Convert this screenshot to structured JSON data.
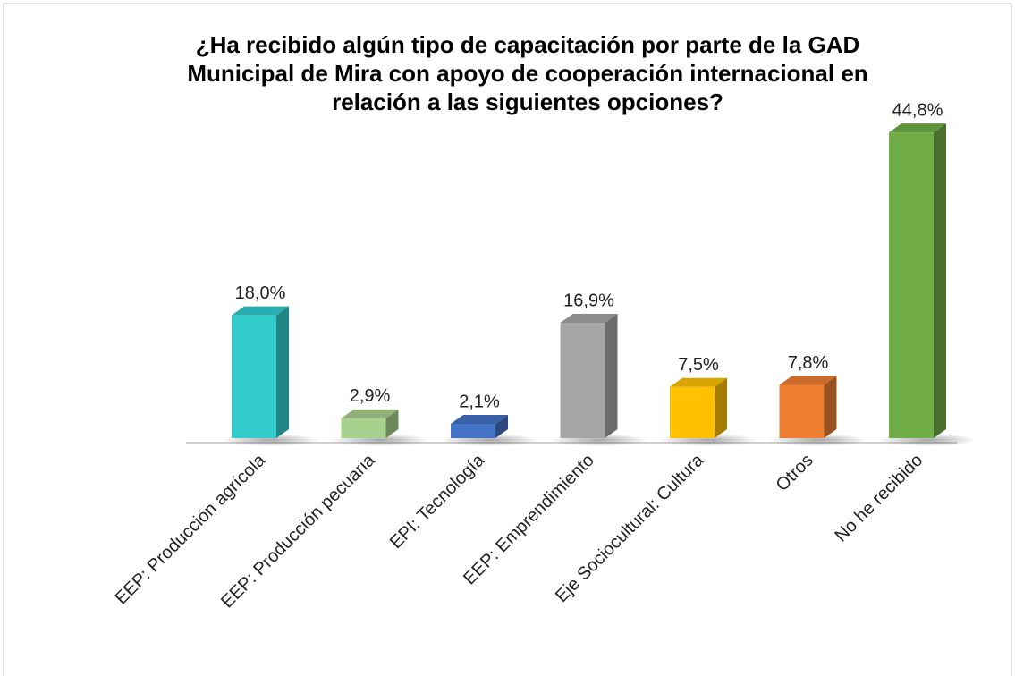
{
  "chart_data": {
    "type": "bar3d",
    "title": [
      "¿Ha recibido algún tipo de capacitación por parte de la GAD",
      "Municipal de Mira con apoyo de cooperación internacional en",
      "relación a las siguientes opciones?"
    ],
    "categories": [
      "EEP: Producción agrícola",
      "EEP: Producción pecuaria",
      "EPI: Tecnología",
      "EEP: Emprendimiento",
      "Eje Sociocultural: Cultura",
      "Otros",
      "No he recibido"
    ],
    "values": [
      18.0,
      2.9,
      2.1,
      16.9,
      7.5,
      7.8,
      44.8
    ],
    "value_labels": [
      "18,0%",
      "2,9%",
      "2,1%",
      "16,9%",
      "7,5%",
      "7,8%",
      "44,8%"
    ],
    "colors": [
      "#33cccc",
      "#a9d18e",
      "#4472c4",
      "#a5a5a5",
      "#ffc000",
      "#ed7d31",
      "#70ad47"
    ]
  }
}
